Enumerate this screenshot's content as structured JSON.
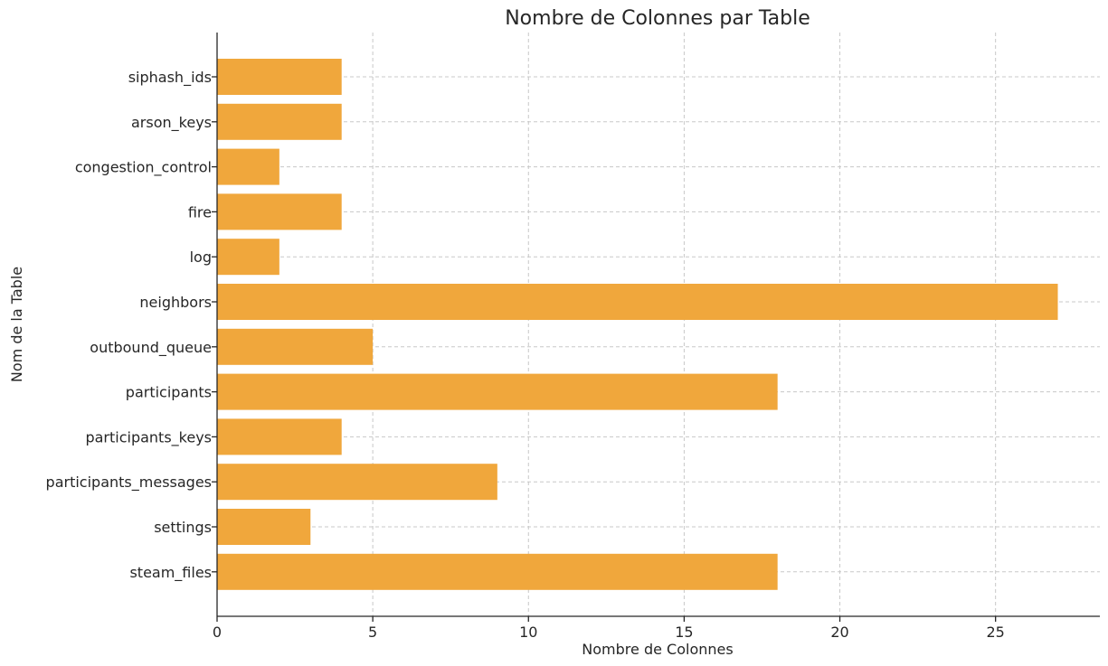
{
  "chart_data": {
    "type": "bar",
    "orientation": "horizontal",
    "title": "Nombre de Colonnes par Table",
    "xlabel": "Nombre de Colonnes",
    "ylabel": "Nom de la Table",
    "categories": [
      "siphash_ids",
      "arson_keys",
      "congestion_control",
      "fire",
      "log",
      "neighbors",
      "outbound_queue",
      "participants",
      "participants_keys",
      "participants_messages",
      "settings",
      "steam_files"
    ],
    "values": [
      4,
      4,
      2,
      4,
      2,
      27,
      5,
      18,
      4,
      9,
      3,
      18
    ],
    "xlim": [
      0,
      28.35
    ],
    "xticks": [
      0,
      5,
      10,
      15,
      20,
      25
    ],
    "grid": true,
    "bar_color": "#f0a73c"
  }
}
